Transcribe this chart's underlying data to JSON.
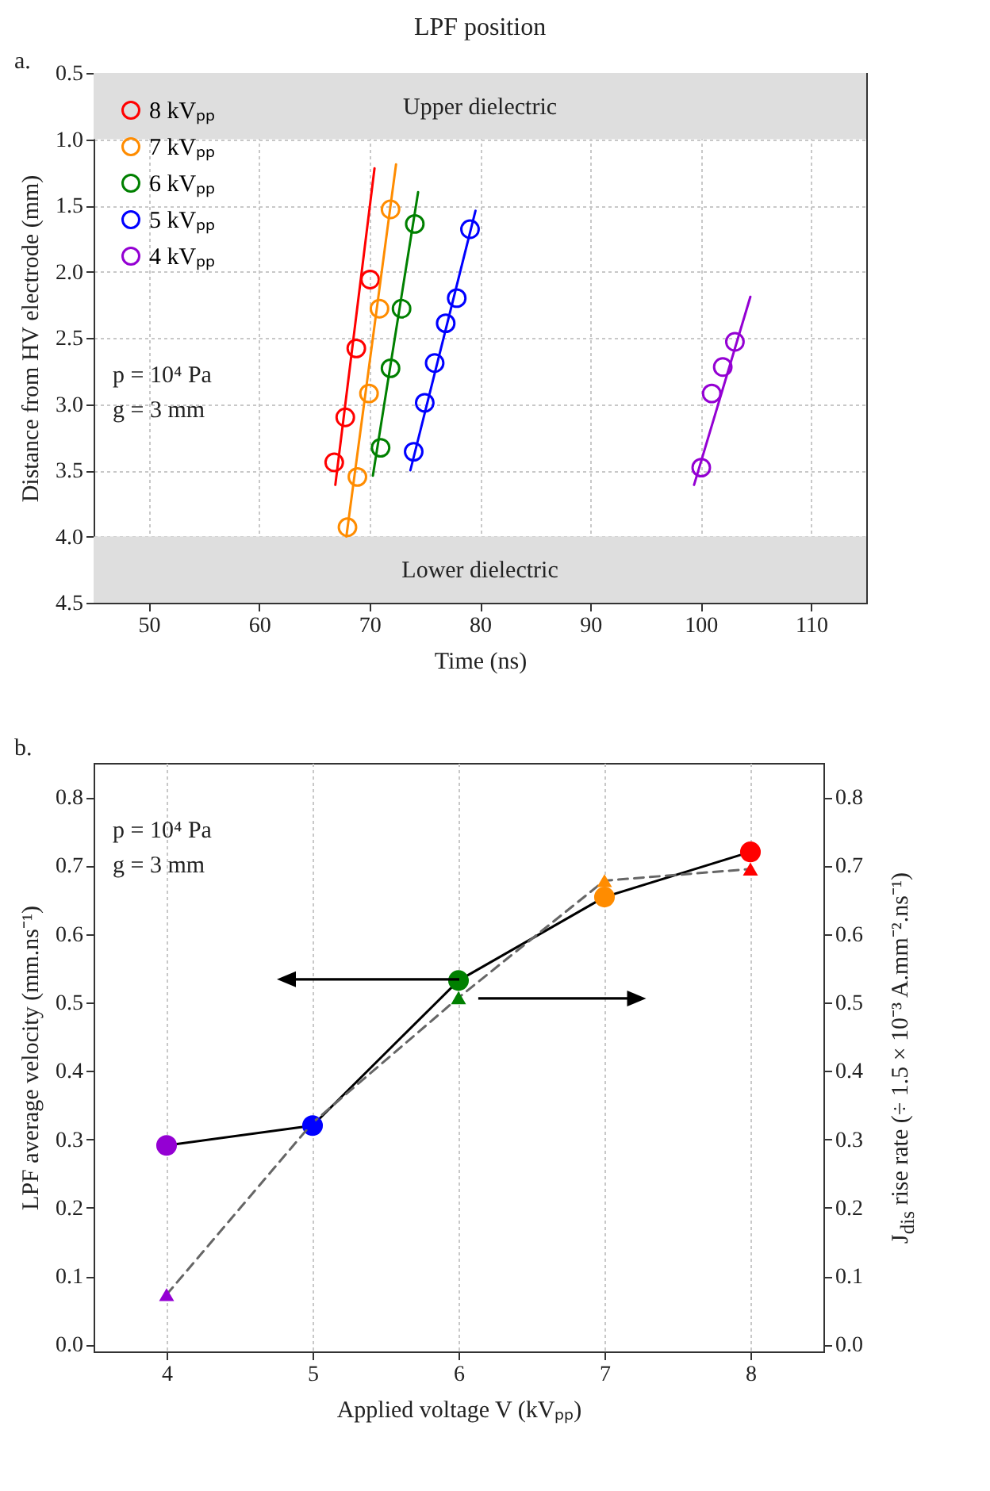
{
  "chart_data": [
    {
      "type": "scatter",
      "title": "LPF position",
      "xlabel": "Time (ns)",
      "ylabel": "Distance from HV electrode (mm)",
      "xlim": [
        45,
        115
      ],
      "xticks": [
        50,
        60,
        70,
        80,
        90,
        100,
        110
      ],
      "ylim": [
        4.5,
        0.5
      ],
      "yticks": [
        0.5,
        {
          "value": 1,
          "label": "1.0"
        },
        1.5,
        {
          "value": 2,
          "label": "2.0"
        },
        2.5,
        {
          "value": 3,
          "label": "3.0"
        },
        3.5,
        {
          "value": 4,
          "label": "4.0"
        },
        4.5
      ],
      "grid": true,
      "legend": "top left",
      "marker": "circle",
      "annotations": [
        "a.",
        "p = 10⁴ Pa",
        "g = 3 mm"
      ],
      "bands": [
        {
          "axis": "y",
          "from": 0.5,
          "to": 1.0,
          "label": "Upper dielectric",
          "color": "#dedede"
        },
        {
          "axis": "y",
          "from": 4.0,
          "to": 4.5,
          "label": "Lower dielectric",
          "color": "#dedede"
        }
      ],
      "series": [
        {
          "name": "8 kVₚₚ",
          "color": "#ff0000",
          "x": [
            66.8,
            67.8,
            68.8,
            70.05
          ],
          "values": [
            3.44,
            3.1,
            2.58,
            2.06
          ]
        },
        {
          "name": "7 kVₚₚ",
          "color": "#ff8c00",
          "x": [
            68.0,
            68.9,
            69.95,
            70.9,
            71.9
          ],
          "values": [
            3.93,
            3.55,
            2.92,
            2.28,
            1.53
          ]
        },
        {
          "name": "6 kVₚₚ",
          "color": "#008000",
          "x": [
            71.0,
            71.9,
            72.9,
            74.1
          ],
          "values": [
            3.33,
            2.73,
            2.28,
            1.64
          ]
        },
        {
          "name": "5 kVₚₚ",
          "color": "#0000ff",
          "x": [
            74.0,
            75.0,
            75.9,
            76.9,
            77.9,
            79.1
          ],
          "values": [
            3.36,
            2.99,
            2.69,
            2.39,
            2.2,
            1.68
          ]
        },
        {
          "name": "4 kVₚₚ",
          "color": "#9400d3",
          "x": [
            100.05,
            101.0,
            102.0,
            103.1
          ],
          "values": [
            3.48,
            2.92,
            2.72,
            2.53
          ]
        },
        {
          "type": "line",
          "marker": "none",
          "color": "#ff0000",
          "x": [
            66.9,
            70.45
          ],
          "values": [
            3.61,
            1.22
          ]
        },
        {
          "type": "line",
          "marker": "none",
          "color": "#ff8c00",
          "x": [
            67.9,
            72.4
          ],
          "values": [
            4.0,
            1.19
          ]
        },
        {
          "type": "line",
          "marker": "none",
          "color": "#008000",
          "x": [
            70.3,
            74.4
          ],
          "values": [
            3.54,
            1.4
          ]
        },
        {
          "type": "line",
          "marker": "none",
          "color": "#0000ff",
          "x": [
            73.7,
            79.6
          ],
          "values": [
            3.5,
            1.54
          ]
        },
        {
          "type": "line",
          "marker": "none",
          "color": "#9400d3",
          "x": [
            99.4,
            104.5
          ],
          "values": [
            3.61,
            2.19
          ]
        }
      ]
    },
    {
      "type": "line",
      "xlabel": "Applied voltage V (kVₚₚ)",
      "ylabel": "LPF average velocity (mm.ns⁻¹)",
      "y2label": "J$_{dis}$ rise rate (÷ 1.5 × 10⁻³ A.mm⁻².ns⁻¹)",
      "x": [
        4,
        5,
        6,
        7,
        8
      ],
      "xlim": [
        3.5,
        8.5
      ],
      "xticks": [
        4,
        5,
        6,
        7,
        8
      ],
      "ylim": [
        -0.01,
        0.85
      ],
      "yticks": [
        {
          "value": 0,
          "label": "0.0"
        },
        0.1,
        0.2,
        0.3,
        0.4,
        0.5,
        0.6,
        0.7,
        0.8
      ],
      "y2lim": [
        -0.01,
        0.85
      ],
      "y2ticks": [
        {
          "value": 0,
          "label": "0.0"
        },
        0.1,
        0.2,
        0.3,
        0.4,
        0.5,
        0.6,
        0.7,
        0.8
      ],
      "grid": "x",
      "annotations": [
        "b.",
        "p = 10⁴ Pa",
        "g = 3 mm"
      ],
      "series": [
        {
          "color": "#000000",
          "colors": [
            "#9400d3",
            "#0000ff",
            "#008000",
            "#ff8c00",
            "#ff0000"
          ],
          "marker": "circle",
          "line_style": "solid",
          "values": [
            0.291,
            0.32,
            0.532,
            0.654,
            0.72
          ]
        },
        {
          "axis": "y2",
          "color": "#666666",
          "colors": [
            "#9400d3",
            "#0000ff",
            "#008000",
            "#ff8c00",
            "#ff0000"
          ],
          "marker": "triangle",
          "line_style": "dashed",
          "values": [
            0.073,
            0.324,
            0.507,
            0.678,
            0.695
          ]
        }
      ]
    }
  ]
}
